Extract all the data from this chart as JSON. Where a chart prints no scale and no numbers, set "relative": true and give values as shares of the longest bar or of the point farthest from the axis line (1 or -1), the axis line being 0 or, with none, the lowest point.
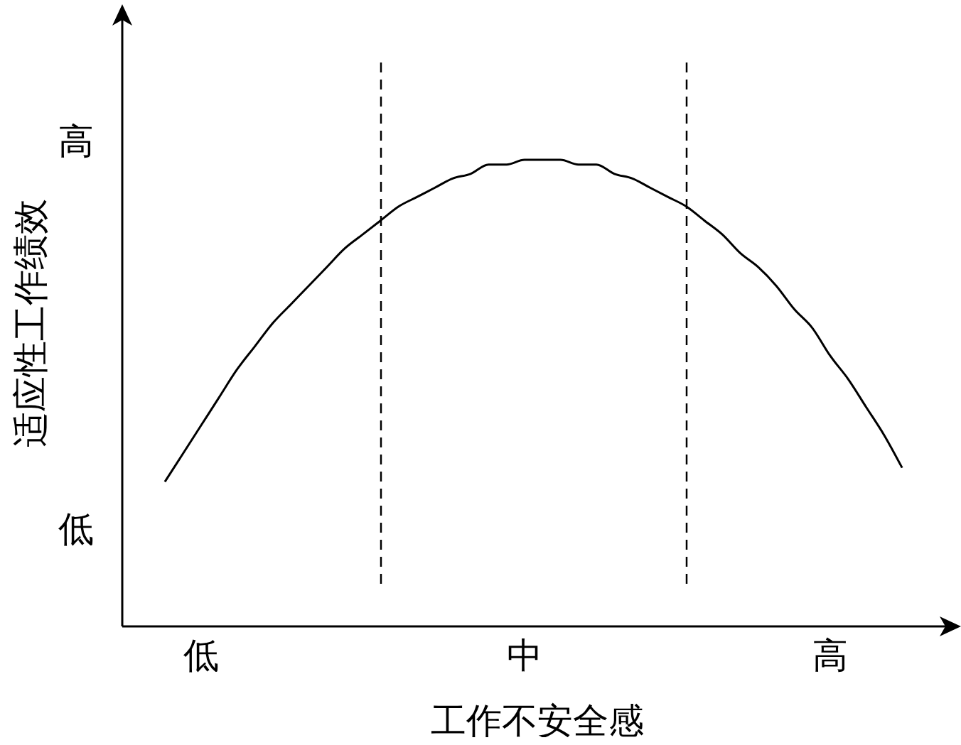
{
  "chart_data": {
    "type": "line",
    "relative": true,
    "xlabel": "工作不安全感",
    "ylabel": "适应性工作绩效",
    "categories": [
      null,
      null,
      "低",
      null,
      null,
      null,
      null,
      null,
      null,
      null,
      null,
      null,
      null,
      null,
      null,
      null,
      null,
      null,
      null,
      null,
      "中",
      null,
      null,
      null,
      null,
      null,
      null,
      null,
      null,
      null,
      null,
      null,
      null,
      null,
      null,
      null,
      null,
      "高",
      null,
      null,
      null,
      null
    ],
    "annotations": [
      "低",
      "高"
    ],
    "series": [
      {
        "color": "#000000",
        "values": [
          0.31,
          0.37,
          0.43,
          0.49,
          0.55,
          0.6,
          0.65,
          0.69,
          0.73,
          0.77,
          0.81,
          0.84,
          0.87,
          0.9,
          0.92,
          0.94,
          0.96,
          0.97,
          0.99,
          0.99,
          1.0,
          1.0,
          1.0,
          0.99,
          0.99,
          0.97,
          0.96,
          0.94,
          0.92,
          0.9,
          0.87,
          0.84,
          0.8,
          0.77,
          0.73,
          0.68,
          0.64,
          0.58,
          0.53,
          0.47,
          0.41,
          0.34
        ]
      }
    ],
    "marker": "none",
    "line_style": "solid",
    "grid": false,
    "legend": false
  }
}
